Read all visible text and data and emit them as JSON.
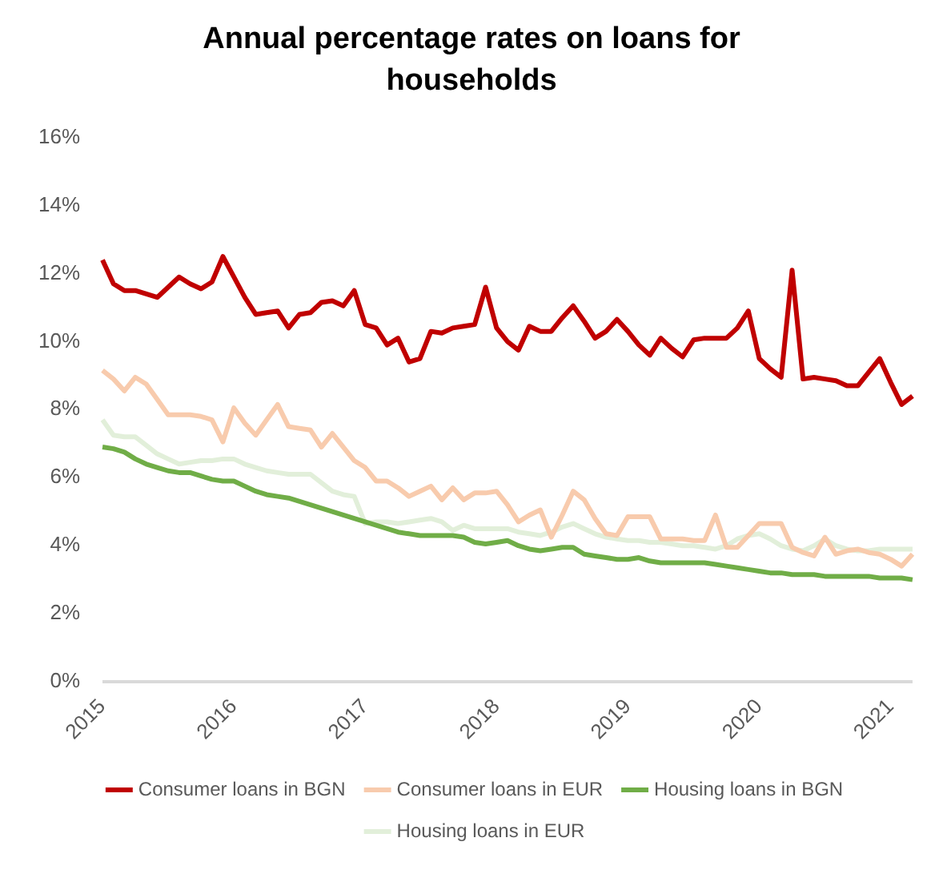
{
  "chart_data": {
    "type": "line",
    "title": "Annual percentage rates on loans for households",
    "categories": [
      "2015",
      null,
      null,
      null,
      null,
      null,
      null,
      null,
      null,
      null,
      null,
      null,
      "2016",
      null,
      null,
      null,
      null,
      null,
      null,
      null,
      null,
      null,
      null,
      null,
      "2017",
      null,
      null,
      null,
      null,
      null,
      null,
      null,
      null,
      null,
      null,
      null,
      "2018",
      null,
      null,
      null,
      null,
      null,
      null,
      null,
      null,
      null,
      null,
      null,
      "2019",
      null,
      null,
      null,
      null,
      null,
      null,
      null,
      null,
      null,
      null,
      null,
      "2020",
      null,
      null,
      null,
      null,
      null,
      null,
      null,
      null,
      null,
      null,
      null,
      "2021",
      null,
      null
    ],
    "ylim": [
      0,
      16
    ],
    "yticks": [
      {
        "value": 0,
        "label": "0%"
      },
      {
        "value": 2,
        "label": "2%"
      },
      {
        "value": 4,
        "label": "4%"
      },
      {
        "value": 6,
        "label": "6%"
      },
      {
        "value": 8,
        "label": "8%"
      },
      {
        "value": 10,
        "label": "10%"
      },
      {
        "value": 12,
        "label": "12%"
      },
      {
        "value": 14,
        "label": "14%"
      },
      {
        "value": 16,
        "label": "16%"
      }
    ],
    "grid": false,
    "legend": "bottom",
    "marker": "none",
    "line_style": "solid",
    "series": [
      {
        "name": "Consumer loans in BGN",
        "color": "#c00000",
        "values": [
          12.4,
          11.7,
          11.5,
          11.5,
          11.4,
          11.3,
          11.6,
          11.9,
          11.7,
          11.55,
          11.75,
          12.5,
          11.9,
          11.3,
          10.8,
          10.85,
          10.9,
          10.4,
          10.8,
          10.85,
          11.15,
          11.2,
          11.05,
          11.5,
          10.5,
          10.4,
          9.9,
          10.1,
          9.4,
          9.5,
          10.3,
          10.25,
          10.4,
          10.45,
          10.5,
          11.6,
          10.4,
          10.0,
          9.75,
          10.45,
          10.3,
          10.3,
          10.7,
          11.05,
          10.6,
          10.1,
          10.3,
          10.65,
          10.3,
          9.9,
          9.6,
          10.1,
          9.8,
          9.55,
          10.05,
          10.1,
          10.1,
          10.1,
          10.4,
          10.9,
          9.5,
          9.2,
          8.95,
          12.1,
          8.9,
          8.95,
          8.9,
          8.85,
          8.7,
          8.7,
          9.1,
          9.5,
          8.8,
          8.15,
          8.4
        ]
      },
      {
        "name": "Consumer loans in EUR",
        "color": "#f8cbad",
        "values": [
          9.15,
          8.9,
          8.55,
          8.95,
          8.75,
          8.3,
          7.85,
          7.85,
          7.85,
          7.8,
          7.7,
          7.05,
          8.05,
          7.6,
          7.25,
          7.7,
          8.15,
          7.5,
          7.45,
          7.4,
          6.9,
          7.3,
          6.9,
          6.5,
          6.3,
          5.9,
          5.9,
          5.7,
          5.45,
          5.6,
          5.75,
          5.35,
          5.7,
          5.35,
          5.55,
          5.55,
          5.6,
          5.2,
          4.7,
          4.9,
          5.05,
          4.25,
          4.9,
          5.6,
          5.35,
          4.8,
          4.35,
          4.3,
          4.85,
          4.85,
          4.85,
          4.2,
          4.2,
          4.2,
          4.15,
          4.15,
          4.9,
          3.95,
          3.95,
          4.3,
          4.65,
          4.65,
          4.65,
          3.95,
          3.8,
          3.7,
          4.25,
          3.75,
          3.85,
          3.9,
          3.8,
          3.75,
          3.6,
          3.4,
          3.75
        ]
      },
      {
        "name": "Housing loans in BGN",
        "color": "#70ad47",
        "values": [
          6.9,
          6.85,
          6.75,
          6.55,
          6.4,
          6.3,
          6.2,
          6.15,
          6.15,
          6.05,
          5.95,
          5.9,
          5.9,
          5.75,
          5.6,
          5.5,
          5.45,
          5.4,
          5.3,
          5.2,
          5.1,
          5.0,
          4.9,
          4.8,
          4.7,
          4.6,
          4.5,
          4.4,
          4.35,
          4.3,
          4.3,
          4.3,
          4.3,
          4.25,
          4.1,
          4.05,
          4.1,
          4.15,
          4.0,
          3.9,
          3.85,
          3.9,
          3.95,
          3.95,
          3.75,
          3.7,
          3.65,
          3.6,
          3.6,
          3.65,
          3.55,
          3.5,
          3.5,
          3.5,
          3.5,
          3.5,
          3.45,
          3.4,
          3.35,
          3.3,
          3.25,
          3.2,
          3.2,
          3.15,
          3.15,
          3.15,
          3.1,
          3.1,
          3.1,
          3.1,
          3.1,
          3.05,
          3.05,
          3.05,
          3.0
        ]
      },
      {
        "name": "Housing loans in EUR",
        "color": "#e2efda",
        "values": [
          7.7,
          7.25,
          7.2,
          7.2,
          6.95,
          6.7,
          6.55,
          6.4,
          6.45,
          6.5,
          6.5,
          6.55,
          6.55,
          6.4,
          6.3,
          6.2,
          6.15,
          6.1,
          6.1,
          6.1,
          5.85,
          5.6,
          5.5,
          5.45,
          4.65,
          4.7,
          4.7,
          4.65,
          4.7,
          4.75,
          4.8,
          4.7,
          4.45,
          4.6,
          4.5,
          4.5,
          4.5,
          4.5,
          4.4,
          4.35,
          4.3,
          4.4,
          4.55,
          4.65,
          4.5,
          4.35,
          4.25,
          4.2,
          4.15,
          4.15,
          4.1,
          4.1,
          4.05,
          4.0,
          4.0,
          3.95,
          3.9,
          4.0,
          4.2,
          4.3,
          4.35,
          4.2,
          4.0,
          3.9,
          3.85,
          4.0,
          4.2,
          4.0,
          3.9,
          3.85,
          3.85,
          3.9,
          3.9,
          3.9,
          3.9
        ]
      }
    ]
  }
}
